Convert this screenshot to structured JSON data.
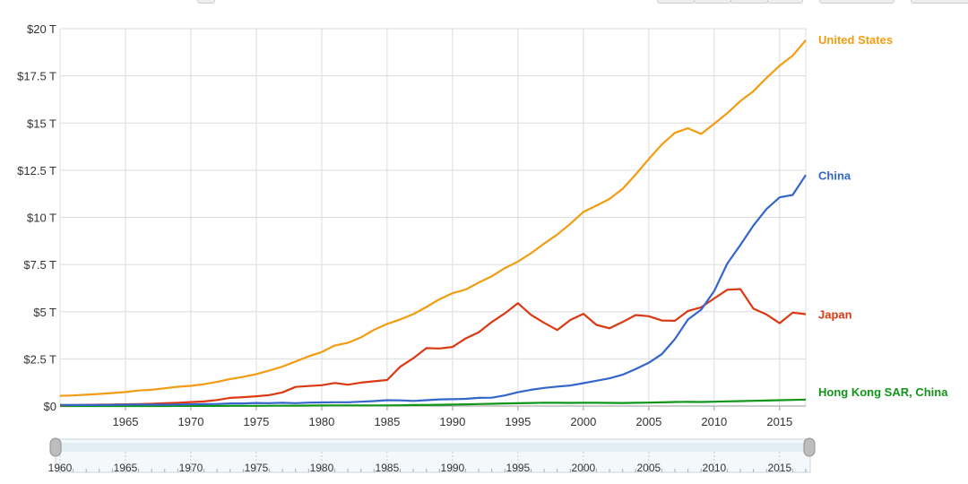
{
  "chart_data": {
    "type": "line",
    "x": [
      1960,
      1961,
      1962,
      1963,
      1964,
      1965,
      1966,
      1967,
      1968,
      1969,
      1970,
      1971,
      1972,
      1973,
      1974,
      1975,
      1976,
      1977,
      1978,
      1979,
      1980,
      1981,
      1982,
      1983,
      1984,
      1985,
      1986,
      1987,
      1988,
      1989,
      1990,
      1991,
      1992,
      1993,
      1994,
      1995,
      1996,
      1997,
      1998,
      1999,
      2000,
      2001,
      2002,
      2003,
      2004,
      2005,
      2006,
      2007,
      2008,
      2009,
      2010,
      2011,
      2012,
      2013,
      2014,
      2015,
      2016,
      2017
    ],
    "series": [
      {
        "name": "United States",
        "color": "#f39c12",
        "values": [
          0.54,
          0.56,
          0.6,
          0.64,
          0.69,
          0.74,
          0.82,
          0.86,
          0.94,
          1.02,
          1.07,
          1.16,
          1.28,
          1.43,
          1.55,
          1.69,
          1.88,
          2.09,
          2.36,
          2.63,
          2.86,
          3.21,
          3.35,
          3.64,
          4.04,
          4.35,
          4.59,
          4.87,
          5.25,
          5.66,
          5.98,
          6.17,
          6.54,
          6.88,
          7.31,
          7.66,
          8.1,
          8.61,
          9.09,
          9.66,
          10.29,
          10.62,
          10.98,
          11.51,
          12.27,
          13.09,
          13.86,
          14.48,
          14.72,
          14.42,
          14.96,
          15.52,
          16.16,
          16.69,
          17.39,
          18.04,
          18.57,
          19.39
        ]
      },
      {
        "name": "China",
        "color": "#3366cc",
        "values": [
          0.06,
          0.05,
          0.05,
          0.05,
          0.06,
          0.07,
          0.08,
          0.07,
          0.07,
          0.08,
          0.09,
          0.1,
          0.11,
          0.14,
          0.14,
          0.16,
          0.15,
          0.17,
          0.15,
          0.18,
          0.19,
          0.2,
          0.2,
          0.23,
          0.26,
          0.31,
          0.3,
          0.27,
          0.31,
          0.35,
          0.36,
          0.38,
          0.43,
          0.44,
          0.56,
          0.73,
          0.86,
          0.96,
          1.03,
          1.09,
          1.21,
          1.34,
          1.47,
          1.66,
          1.96,
          2.29,
          2.75,
          3.55,
          4.59,
          5.1,
          6.09,
          7.55,
          8.53,
          9.57,
          10.44,
          11.06,
          11.19,
          12.24
        ]
      },
      {
        "name": "Japan",
        "color": "#dc3912",
        "values": [
          0.04,
          0.05,
          0.06,
          0.07,
          0.08,
          0.09,
          0.1,
          0.12,
          0.15,
          0.17,
          0.21,
          0.24,
          0.32,
          0.43,
          0.47,
          0.52,
          0.58,
          0.72,
          1.01,
          1.06,
          1.1,
          1.22,
          1.13,
          1.24,
          1.31,
          1.38,
          2.08,
          2.53,
          3.07,
          3.05,
          3.13,
          3.58,
          3.91,
          4.45,
          4.91,
          5.45,
          4.83,
          4.41,
          4.03,
          4.56,
          4.89,
          4.3,
          4.12,
          4.45,
          4.82,
          4.76,
          4.53,
          4.52,
          5.04,
          5.23,
          5.7,
          6.16,
          6.2,
          5.16,
          4.85,
          4.39,
          4.95,
          4.87
        ]
      },
      {
        "name": "Hong Kong SAR, China",
        "color": "#109618",
        "values": [
          0.001,
          0.001,
          0.001,
          0.002,
          0.002,
          0.002,
          0.002,
          0.002,
          0.002,
          0.003,
          0.004,
          0.004,
          0.005,
          0.008,
          0.009,
          0.01,
          0.013,
          0.016,
          0.018,
          0.023,
          0.029,
          0.031,
          0.032,
          0.03,
          0.034,
          0.035,
          0.04,
          0.05,
          0.059,
          0.068,
          0.077,
          0.089,
          0.104,
          0.121,
          0.136,
          0.145,
          0.16,
          0.178,
          0.172,
          0.166,
          0.172,
          0.17,
          0.166,
          0.161,
          0.169,
          0.182,
          0.194,
          0.212,
          0.22,
          0.214,
          0.229,
          0.249,
          0.263,
          0.276,
          0.292,
          0.309,
          0.321,
          0.341
        ]
      }
    ],
    "y_ticks": [
      "$0",
      "$2.5 T",
      "$5 T",
      "$7.5 T",
      "$10 T",
      "$12.5 T",
      "$15 T",
      "$17.5 T",
      "$20 T"
    ],
    "x_ticks": [
      "1965",
      "1970",
      "1975",
      "1980",
      "1985",
      "1990",
      "1995",
      "2000",
      "2005",
      "2010",
      "2015"
    ],
    "range_ticks": [
      "1960",
      "1965",
      "1970",
      "1975",
      "1980",
      "1985",
      "1990",
      "1995",
      "2000",
      "2005",
      "2010",
      "2015"
    ],
    "ylim": [
      0,
      20
    ],
    "xlim": [
      1960,
      2017
    ],
    "grid": true,
    "legend": "right, labels at line ends"
  }
}
